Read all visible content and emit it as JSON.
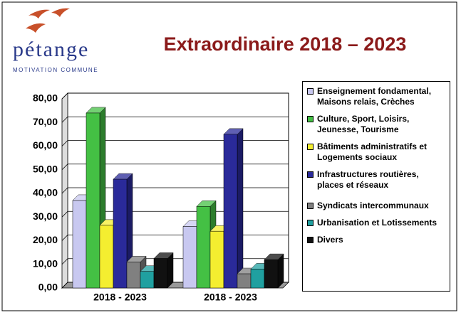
{
  "logo": {
    "name": "pétange",
    "tagline": "MOTIVATION COMMUNE"
  },
  "chart_data": {
    "type": "bar3d",
    "title": "Extraordinaire 2018 – 2023",
    "categories": [
      "2018 - 2023",
      "2018 - 2023"
    ],
    "series": [
      {
        "name": "Enseignement fondamental, Maisons relais, Crèches",
        "color": "#c8c8f0",
        "values": [
          37,
          26
        ]
      },
      {
        "name": "Culture, Sport, Loisirs, Jeunesse, Tourisme",
        "color": "#44c044",
        "values": [
          74,
          34.5
        ]
      },
      {
        "name": "Bâtiments administratifs et Logements sociaux",
        "color": "#f4ee30",
        "values": [
          26.5,
          24
        ]
      },
      {
        "name": "Infrastructures routières, places et réseaux",
        "color": "#2a2a9a",
        "values": [
          46,
          65
        ]
      },
      {
        "name": "Syndicats intercommunaux",
        "color": "#808080",
        "values": [
          11,
          6
        ]
      },
      {
        "name": "Urbanisation et Lotissements",
        "color": "#20a0a0",
        "values": [
          7,
          8
        ]
      },
      {
        "name": "Divers",
        "color": "#111111",
        "values": [
          12.5,
          12
        ]
      }
    ],
    "ylim": [
      0,
      80
    ],
    "yticks": [
      {
        "value": 0,
        "label": "0,00"
      },
      {
        "value": 10,
        "label": "10,00"
      },
      {
        "value": 20,
        "label": "20,00"
      },
      {
        "value": 30,
        "label": "30,00"
      },
      {
        "value": 40,
        "label": "40,00"
      },
      {
        "value": 50,
        "label": "50,00"
      },
      {
        "value": 60,
        "label": "60,00"
      },
      {
        "value": 70,
        "label": "70,00"
      },
      {
        "value": 80,
        "label": "80,00"
      }
    ],
    "grid": true
  }
}
